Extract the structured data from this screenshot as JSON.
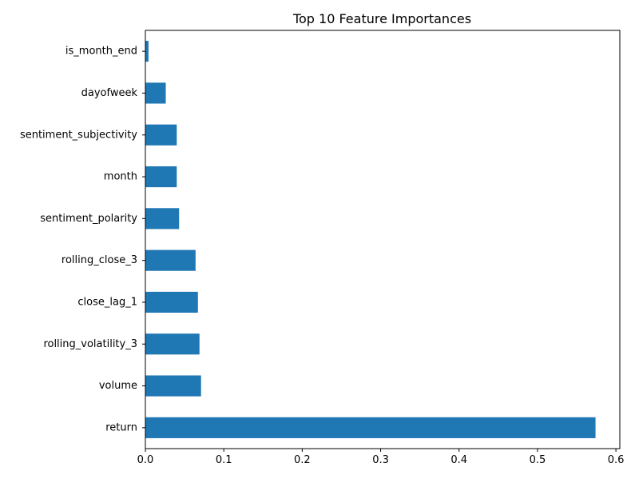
{
  "chart_data": {
    "type": "bar",
    "orientation": "horizontal",
    "title": "Top 10 Feature Importances",
    "xlabel": "",
    "ylabel": "",
    "categories": [
      "return",
      "volume",
      "rolling_volatility_3",
      "close_lag_1",
      "rolling_close_3",
      "sentiment_polarity",
      "month",
      "sentiment_subjectivity",
      "dayofweek",
      "is_month_end"
    ],
    "values": [
      0.574,
      0.071,
      0.069,
      0.067,
      0.064,
      0.043,
      0.04,
      0.04,
      0.026,
      0.004
    ],
    "xlim": [
      0,
      0.605
    ],
    "xticks": [
      0.0,
      0.1,
      0.2,
      0.3,
      0.4,
      0.5,
      0.6
    ],
    "xtick_labels": [
      "0.0",
      "0.1",
      "0.2",
      "0.3",
      "0.4",
      "0.5",
      "0.6"
    ],
    "grid": false,
    "legend": "none",
    "bar_color": "#1f77b4"
  }
}
